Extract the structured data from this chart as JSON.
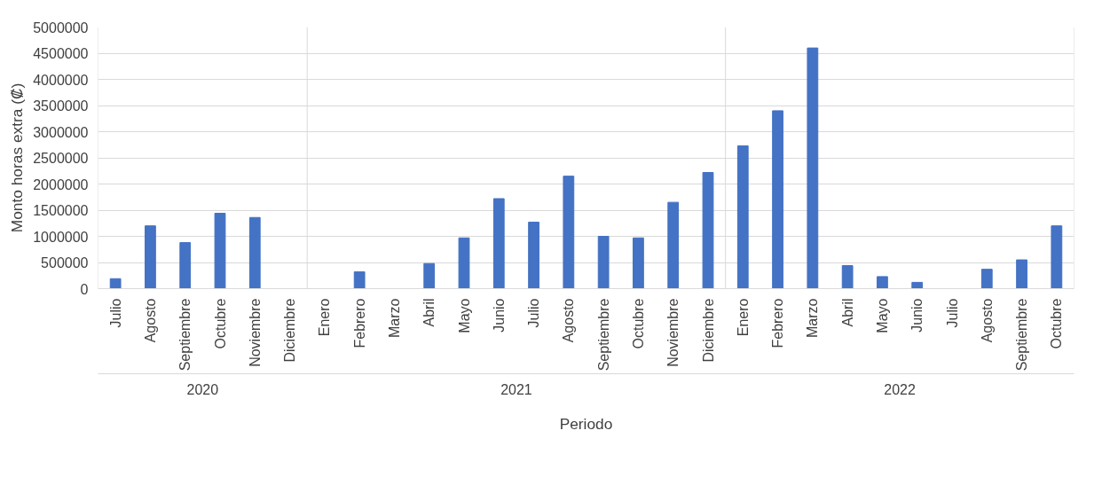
{
  "chart_data": {
    "type": "bar",
    "xlabel": "Periodo",
    "ylabel": "Monto horas extra (₡)",
    "x": [
      "2020-07",
      "2020-08",
      "2020-09",
      "2020-10",
      "2020-11",
      "2020-12",
      "2021-01",
      "2021-02",
      "2021-03",
      "2021-04",
      "2021-05",
      "2021-06",
      "2021-07",
      "2021-08",
      "2021-09",
      "2021-10",
      "2021-11",
      "2021-12",
      "2022-01",
      "2022-02",
      "2022-03",
      "2022-04",
      "2022-05",
      "2022-06",
      "2022-07",
      "2022-08",
      "2022-09",
      "2022-10"
    ],
    "values": [
      190000,
      1200000,
      880000,
      1440000,
      1360000,
      0,
      0,
      320000,
      0,
      480000,
      970000,
      1720000,
      1270000,
      2150000,
      1000000,
      970000,
      1650000,
      2220000,
      2730000,
      3400000,
      4600000,
      440000,
      230000,
      120000,
      0,
      370000,
      550000,
      1200000
    ],
    "color": "#4472c4",
    "xlim": [
      "2020-06-16",
      "2022-10-16"
    ],
    "xticks": [
      {
        "value": "2020-07",
        "label": "Julio"
      },
      {
        "value": "2020-08",
        "label": "Agosto"
      },
      {
        "value": "2020-09",
        "label": "Septiembre"
      },
      {
        "value": "2020-10",
        "label": "Octubre"
      },
      {
        "value": "2020-11",
        "label": "Noviembre"
      },
      {
        "value": "2020-12",
        "label": "Diciembre"
      },
      {
        "value": "2021-01",
        "label": "Enero"
      },
      {
        "value": "2021-02",
        "label": "Febrero"
      },
      {
        "value": "2021-03",
        "label": "Marzo"
      },
      {
        "value": "2021-04",
        "label": "Abril"
      },
      {
        "value": "2021-05",
        "label": "Mayo"
      },
      {
        "value": "2021-06",
        "label": "Junio"
      },
      {
        "value": "2021-07",
        "label": "Julio"
      },
      {
        "value": "2021-08",
        "label": "Agosto"
      },
      {
        "value": "2021-09",
        "label": "Septiembre"
      },
      {
        "value": "2021-10",
        "label": "Octubre"
      },
      {
        "value": "2021-11",
        "label": "Noviembre"
      },
      {
        "value": "2021-12",
        "label": "Diciembre"
      },
      {
        "value": "2022-01",
        "label": "Enero"
      },
      {
        "value": "2022-02",
        "label": "Febrero"
      },
      {
        "value": "2022-03",
        "label": "Marzo"
      },
      {
        "value": "2022-04",
        "label": "Abril"
      },
      {
        "value": "2022-05",
        "label": "Mayo"
      },
      {
        "value": "2022-06",
        "label": "Junio"
      },
      {
        "value": "2022-07",
        "label": "Julio"
      },
      {
        "value": "2022-08",
        "label": "Agosto"
      },
      {
        "value": "2022-09",
        "label": "Septiembre"
      },
      {
        "value": "2022-10",
        "label": "Octubre"
      }
    ],
    "ylim": [
      0,
      5000000
    ],
    "yticks": [
      0,
      500000,
      1000000,
      1500000,
      2000000,
      2500000,
      3000000,
      3500000,
      4000000,
      4500000,
      5000000
    ],
    "grid": "y",
    "annotations": [
      "2020",
      "2021",
      "2022"
    ]
  }
}
